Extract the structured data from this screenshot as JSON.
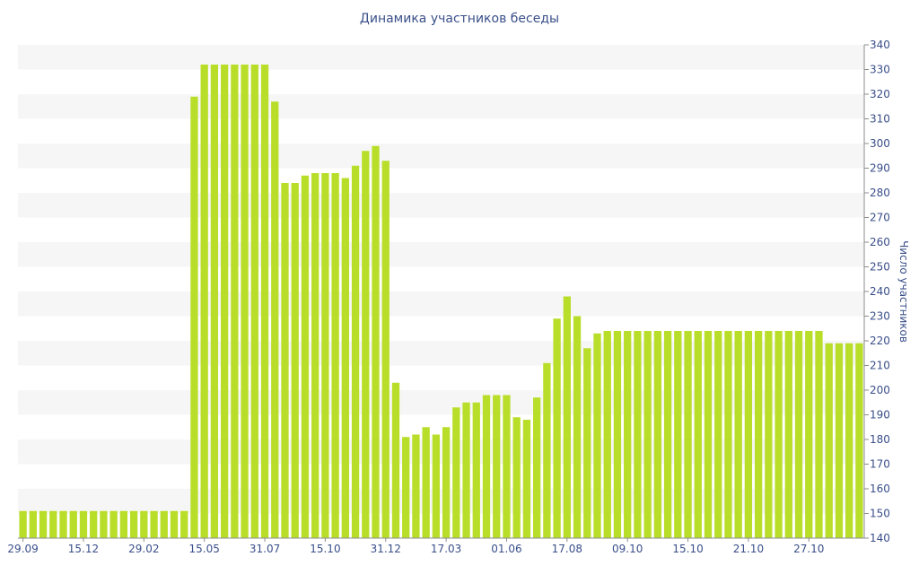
{
  "chart_data": {
    "type": "bar",
    "title": "Динамика участников беседы",
    "ylabel": "Число участников",
    "xlabel": "",
    "ylim": [
      140,
      340
    ],
    "y_ticks": [
      140,
      150,
      160,
      170,
      180,
      190,
      200,
      210,
      220,
      230,
      240,
      250,
      260,
      270,
      280,
      290,
      300,
      310,
      320,
      330,
      340
    ],
    "grid": "horizontal alternating bands",
    "y_axis_position": "right",
    "x_tick_labels": [
      {
        "index": 0,
        "label": "29.09"
      },
      {
        "index": 6,
        "label": "15.12"
      },
      {
        "index": 12,
        "label": "29.02"
      },
      {
        "index": 18,
        "label": "15.05"
      },
      {
        "index": 24,
        "label": "31.07"
      },
      {
        "index": 30,
        "label": "15.10"
      },
      {
        "index": 36,
        "label": "31.12"
      },
      {
        "index": 42,
        "label": "17.03"
      },
      {
        "index": 48,
        "label": "01.06"
      },
      {
        "index": 54,
        "label": "17.08"
      },
      {
        "index": 60,
        "label": "09.10"
      },
      {
        "index": 66,
        "label": "15.10"
      },
      {
        "index": 72,
        "label": "21.10"
      },
      {
        "index": 78,
        "label": "27.10"
      }
    ],
    "values": [
      151,
      151,
      151,
      151,
      151,
      151,
      151,
      151,
      151,
      151,
      151,
      151,
      151,
      151,
      151,
      151,
      151,
      319,
      332,
      332,
      332,
      332,
      332,
      332,
      332,
      317,
      284,
      284,
      287,
      288,
      288,
      288,
      286,
      291,
      297,
      299,
      293,
      203,
      181,
      182,
      185,
      182,
      185,
      193,
      195,
      195,
      198,
      198,
      198,
      189,
      188,
      197,
      211,
      229,
      238,
      230,
      217,
      223,
      224,
      224,
      224,
      224,
      224,
      224,
      224,
      224,
      224,
      224,
      224,
      224,
      224,
      224,
      224,
      224,
      224,
      224,
      224,
      224,
      224,
      224,
      219,
      219,
      219,
      219
    ],
    "bar_color": "#b9de2a",
    "band_color": "#f6f6f6",
    "text_color": "#3a4f8a"
  }
}
